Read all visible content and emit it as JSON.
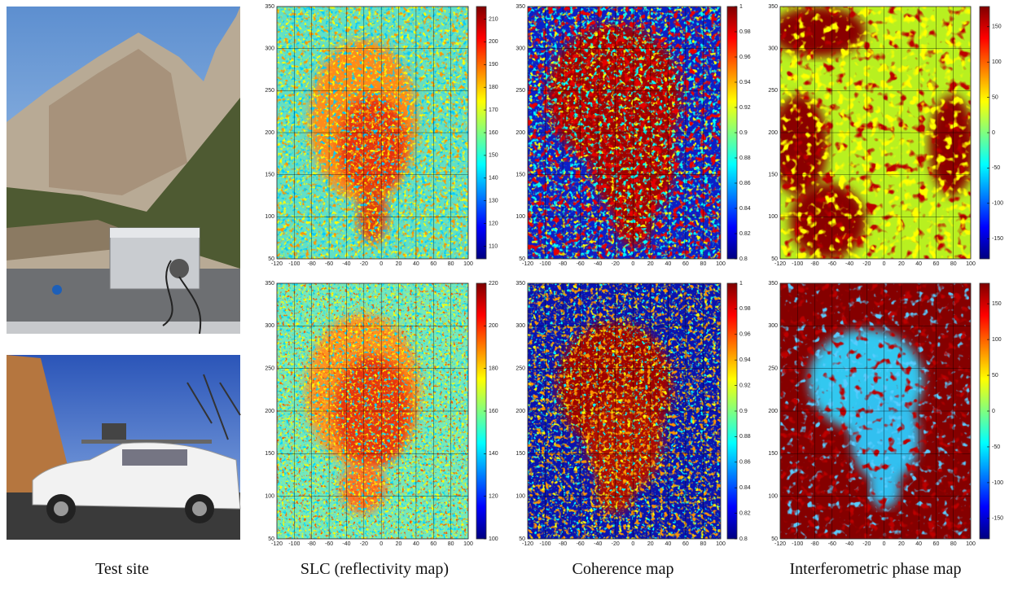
{
  "captions": [
    "Test site",
    "SLC (reflectivity map)",
    "Coherence map",
    "Interferometric phase map"
  ],
  "axes": {
    "x_ticks": [
      -120,
      -100,
      -80,
      -60,
      -40,
      -20,
      0,
      20,
      40,
      60,
      80,
      100
    ],
    "y_ticks": [
      50,
      100,
      150,
      200,
      250,
      300,
      350
    ]
  },
  "panels": [
    {
      "colorbar_ticks": [
        110,
        120,
        130,
        140,
        150,
        160,
        170,
        180,
        190,
        200,
        210
      ]
    },
    {
      "colorbar_ticks": [
        0.8,
        0.82,
        0.84,
        0.86,
        0.88,
        0.9,
        0.92,
        0.94,
        0.96,
        0.98,
        1
      ]
    },
    {
      "colorbar_ticks": [
        -150,
        -100,
        -50,
        0,
        50,
        100,
        150
      ]
    },
    {
      "colorbar_ticks": [
        100,
        120,
        140,
        160,
        180,
        200,
        220
      ]
    },
    {
      "colorbar_ticks": [
        0.8,
        0.82,
        0.84,
        0.86,
        0.88,
        0.9,
        0.92,
        0.94,
        0.96,
        0.98,
        1
      ]
    },
    {
      "colorbar_ticks": [
        -150,
        -100,
        -50,
        0,
        50,
        100,
        150
      ]
    }
  ]
}
